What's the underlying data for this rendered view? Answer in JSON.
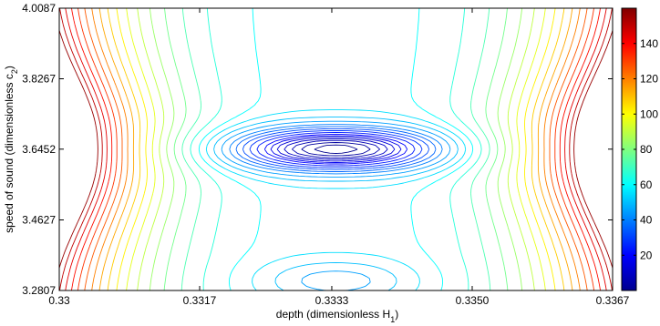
{
  "chart_data": {
    "type": "contour",
    "title": "",
    "xlabel": "depth (dimensionless H",
    "xlabel_sub": "1",
    "xlabel_close": ")",
    "ylabel": "speed of sound (dimensionless c",
    "ylabel_sub": "2",
    "ylabel_close": ")",
    "xlim": [
      0.33,
      0.3367
    ],
    "ylim": [
      3.2807,
      4.0087
    ],
    "xticks": [
      0.33,
      0.3317,
      0.3333,
      0.335,
      0.3367
    ],
    "xtick_labels": [
      "0.33",
      "0.3317",
      "0.3333",
      "0.3350",
      "0.3367"
    ],
    "yticks": [
      3.2807,
      3.4627,
      3.6452,
      3.8267,
      4.0087
    ],
    "ytick_labels": [
      "3.2807",
      "3.4627",
      "3.6452",
      "3.8267",
      "4.0087"
    ],
    "grid": false,
    "colormap": "jet",
    "clim": [
      0,
      160
    ],
    "colorbar_ticks": [
      20,
      40,
      60,
      80,
      100,
      120,
      140
    ],
    "colorbar_tick_labels": [
      "20",
      "40",
      "60",
      "80",
      "100",
      "120",
      "140"
    ],
    "colorbar_position": "right",
    "contour_levels": [
      2,
      5,
      8,
      11,
      14,
      17,
      20,
      24,
      28,
      32,
      36,
      40,
      45,
      50,
      55,
      60,
      66,
      72,
      78,
      84,
      90,
      96,
      102,
      108,
      114,
      120,
      126,
      132,
      138,
      144,
      150,
      156
    ],
    "minima": [
      {
        "x": 0.33335,
        "y": 3.6452,
        "value": 0
      },
      {
        "x": 0.33335,
        "y": 3.3053,
        "value": 40
      }
    ],
    "function_peak_value": 156
  }
}
